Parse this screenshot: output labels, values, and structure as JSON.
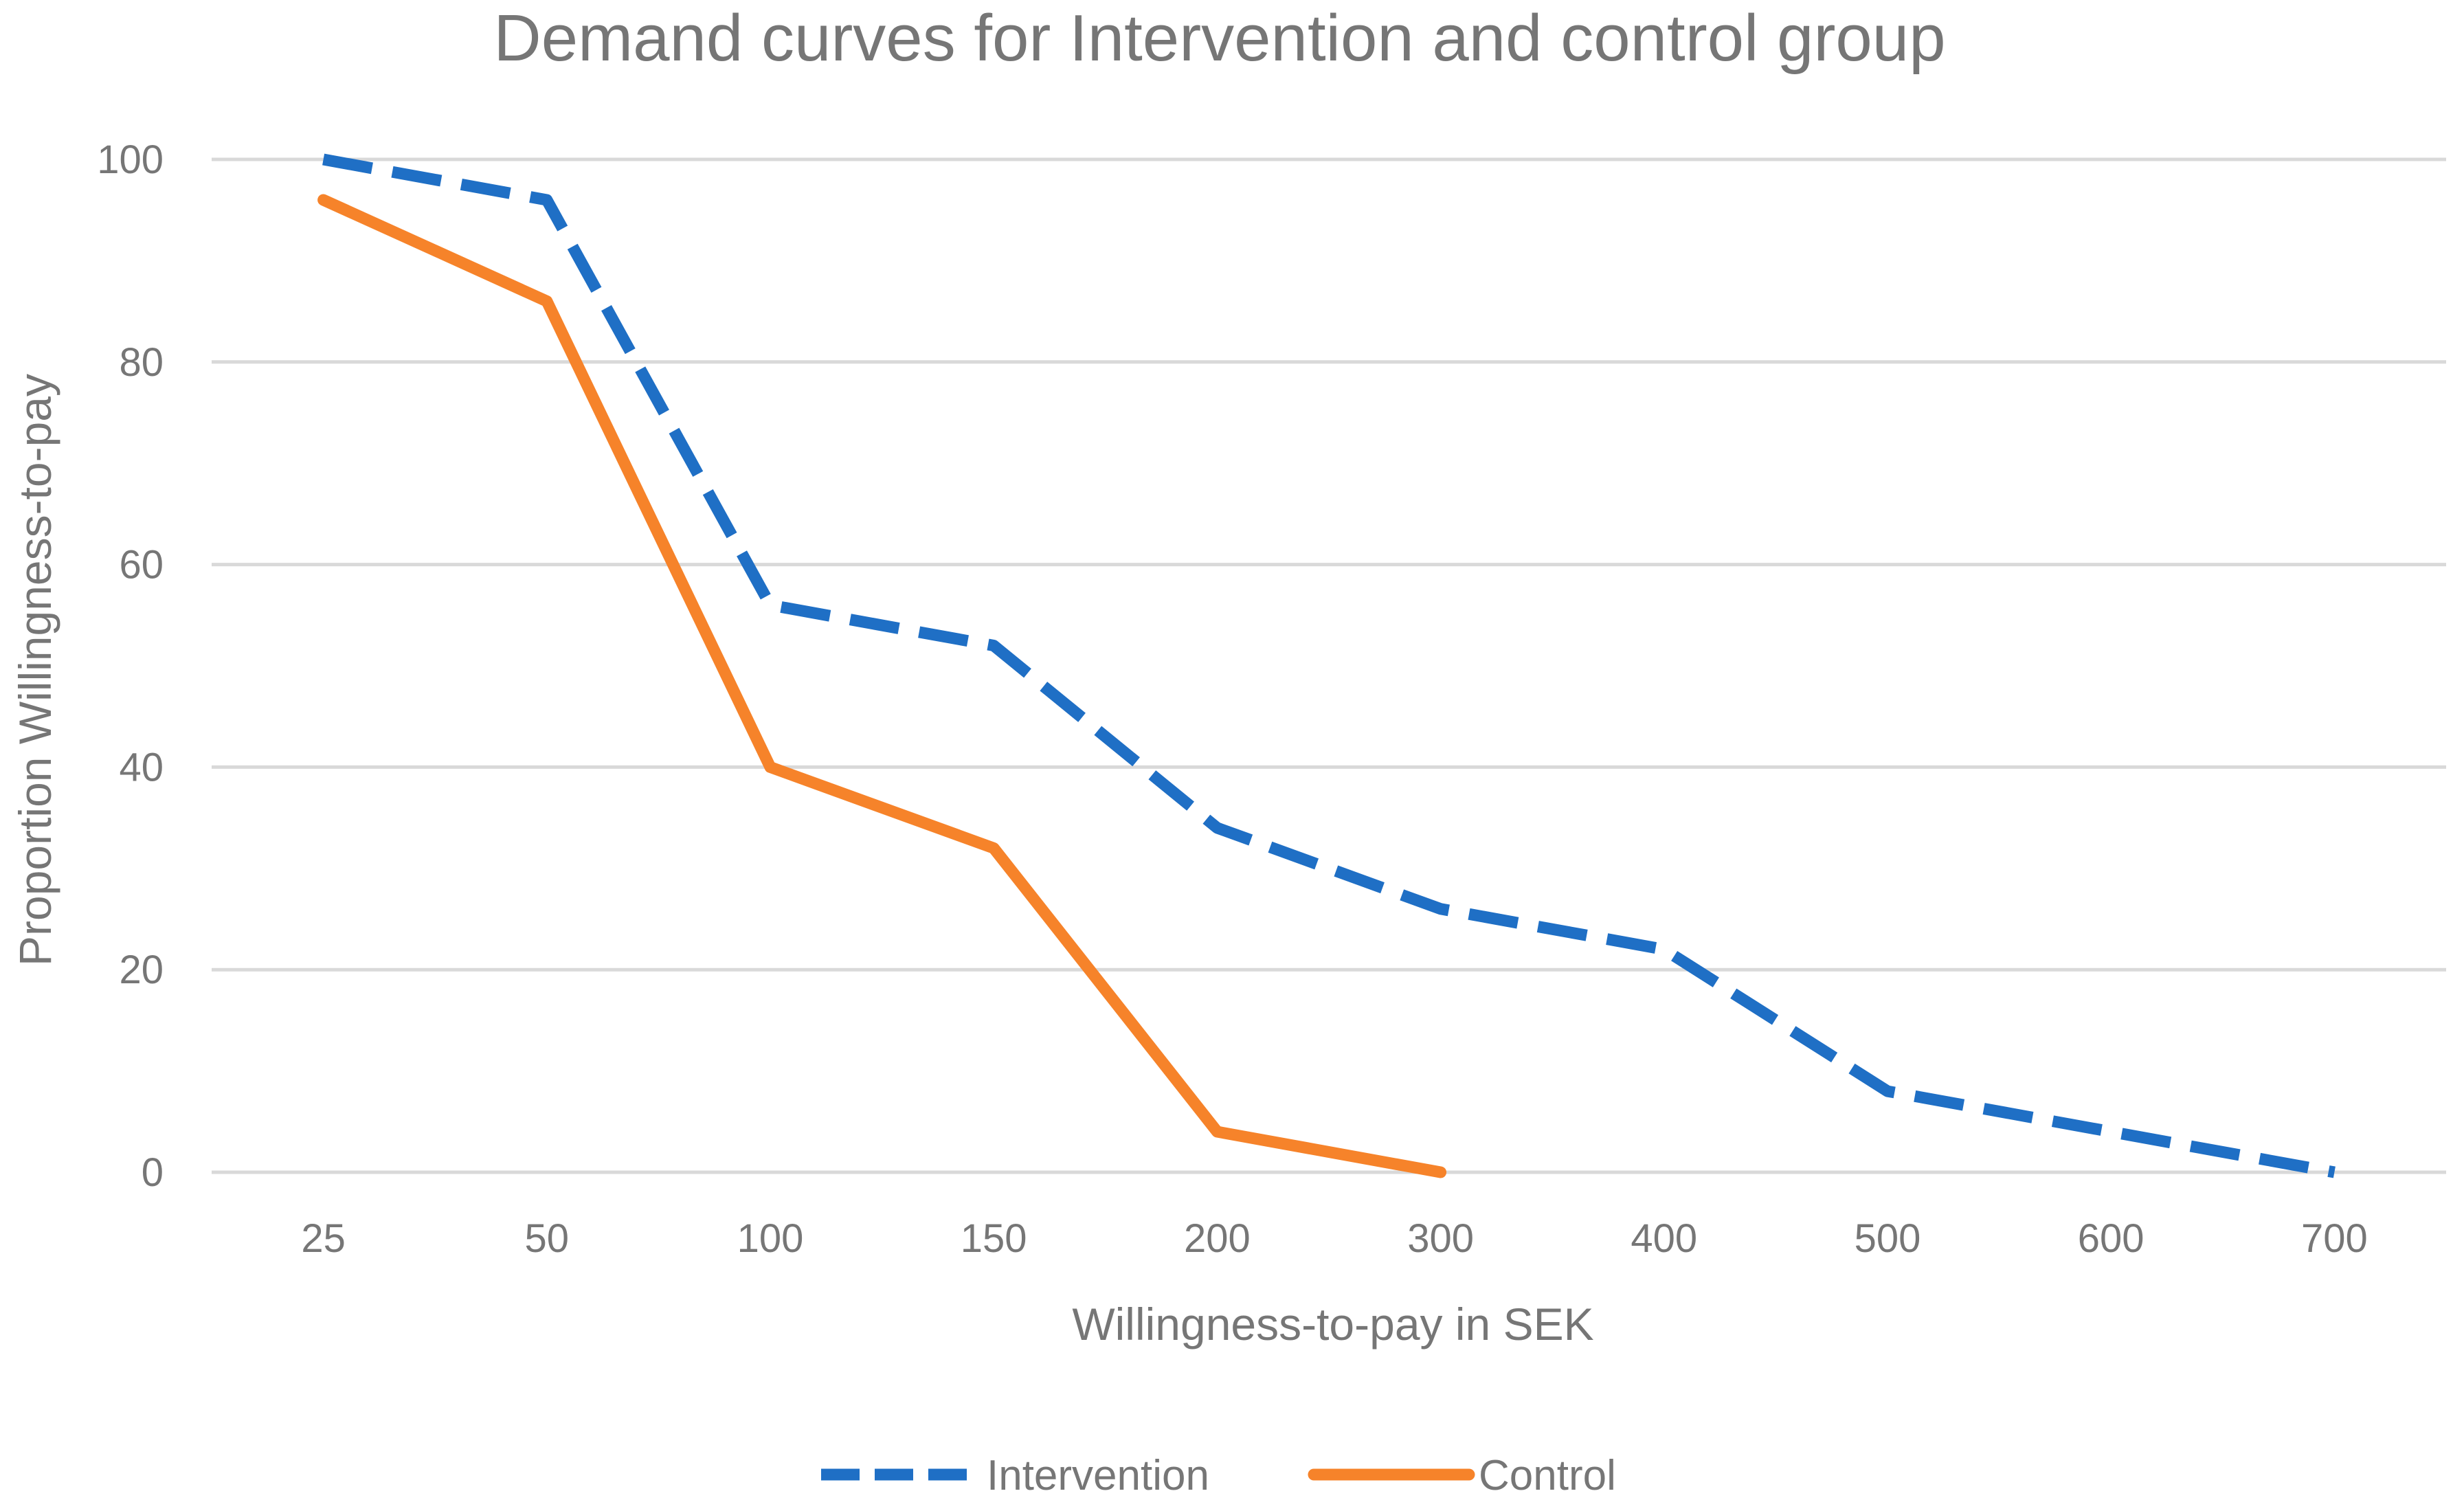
{
  "chart_data": {
    "type": "line",
    "title": "Demand curves for Intervention and control group",
    "xlabel": "Willingness-to-pay in SEK",
    "ylabel": "Proportion Willingness-to-pay",
    "categories": [
      "25",
      "50",
      "100",
      "150",
      "200",
      "300",
      "400",
      "500",
      "600",
      "700"
    ],
    "ylim": [
      0,
      100
    ],
    "yticks": [
      "0",
      "20",
      "40",
      "60",
      "80",
      "100"
    ],
    "grid": true,
    "legend_position": "bottom",
    "series": [
      {
        "name": "Intervention",
        "style": "dashed",
        "color": "#1f6fc5",
        "values": [
          100,
          96,
          56,
          52,
          34,
          26,
          22,
          8,
          4,
          0
        ]
      },
      {
        "name": "Control",
        "style": "solid",
        "color": "#f6832a",
        "values": [
          96,
          86,
          40,
          32,
          4,
          0,
          null,
          null,
          null,
          null
        ]
      }
    ]
  }
}
